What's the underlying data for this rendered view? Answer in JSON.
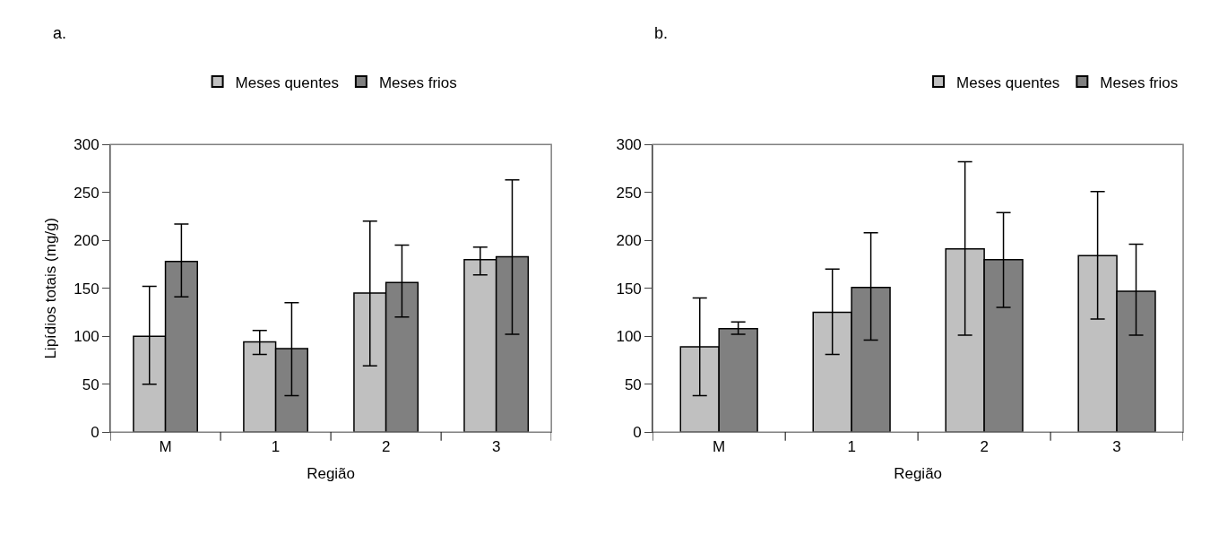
{
  "chart_data": [
    {
      "type": "bar",
      "title": "a.",
      "xlabel": "Região",
      "ylabel": "Lipídios totais (mg/g)",
      "categories": [
        "M",
        "1",
        "2",
        "3"
      ],
      "ylim": [
        0,
        300
      ],
      "yticks": [
        0,
        50,
        100,
        150,
        200,
        250,
        300
      ],
      "legend": "top",
      "series": [
        {
          "name": "Meses quentes",
          "color": "#c0c0c0",
          "values": [
            100,
            94,
            145,
            180
          ],
          "errors": [
            [
              50,
              152
            ],
            [
              81,
              106
            ],
            [
              69,
              220
            ],
            [
              164,
              193
            ]
          ]
        },
        {
          "name": "Meses frios",
          "color": "#808080",
          "values": [
            178,
            87,
            156,
            183
          ],
          "errors": [
            [
              141,
              217
            ],
            [
              38,
              135
            ],
            [
              120,
              195
            ],
            [
              102,
              263
            ]
          ]
        }
      ]
    },
    {
      "type": "bar",
      "title": "b.",
      "xlabel": "Região",
      "categories": [
        "M",
        "1",
        "2",
        "3"
      ],
      "ylim": [
        0,
        300
      ],
      "yticks": [
        0,
        50,
        100,
        150,
        200,
        250,
        300
      ],
      "legend": "top right",
      "series": [
        {
          "name": "Meses quentes",
          "color": "#c0c0c0",
          "values": [
            89,
            125,
            191,
            184
          ],
          "errors": [
            [
              38,
              140
            ],
            [
              81,
              170
            ],
            [
              101,
              282
            ],
            [
              118,
              251
            ]
          ]
        },
        {
          "name": "Meses frios",
          "color": "#808080",
          "values": [
            108,
            151,
            180,
            147
          ],
          "errors": [
            [
              102,
              115
            ],
            [
              96,
              208
            ],
            [
              130,
              229
            ],
            [
              101,
              196
            ]
          ]
        }
      ]
    }
  ]
}
